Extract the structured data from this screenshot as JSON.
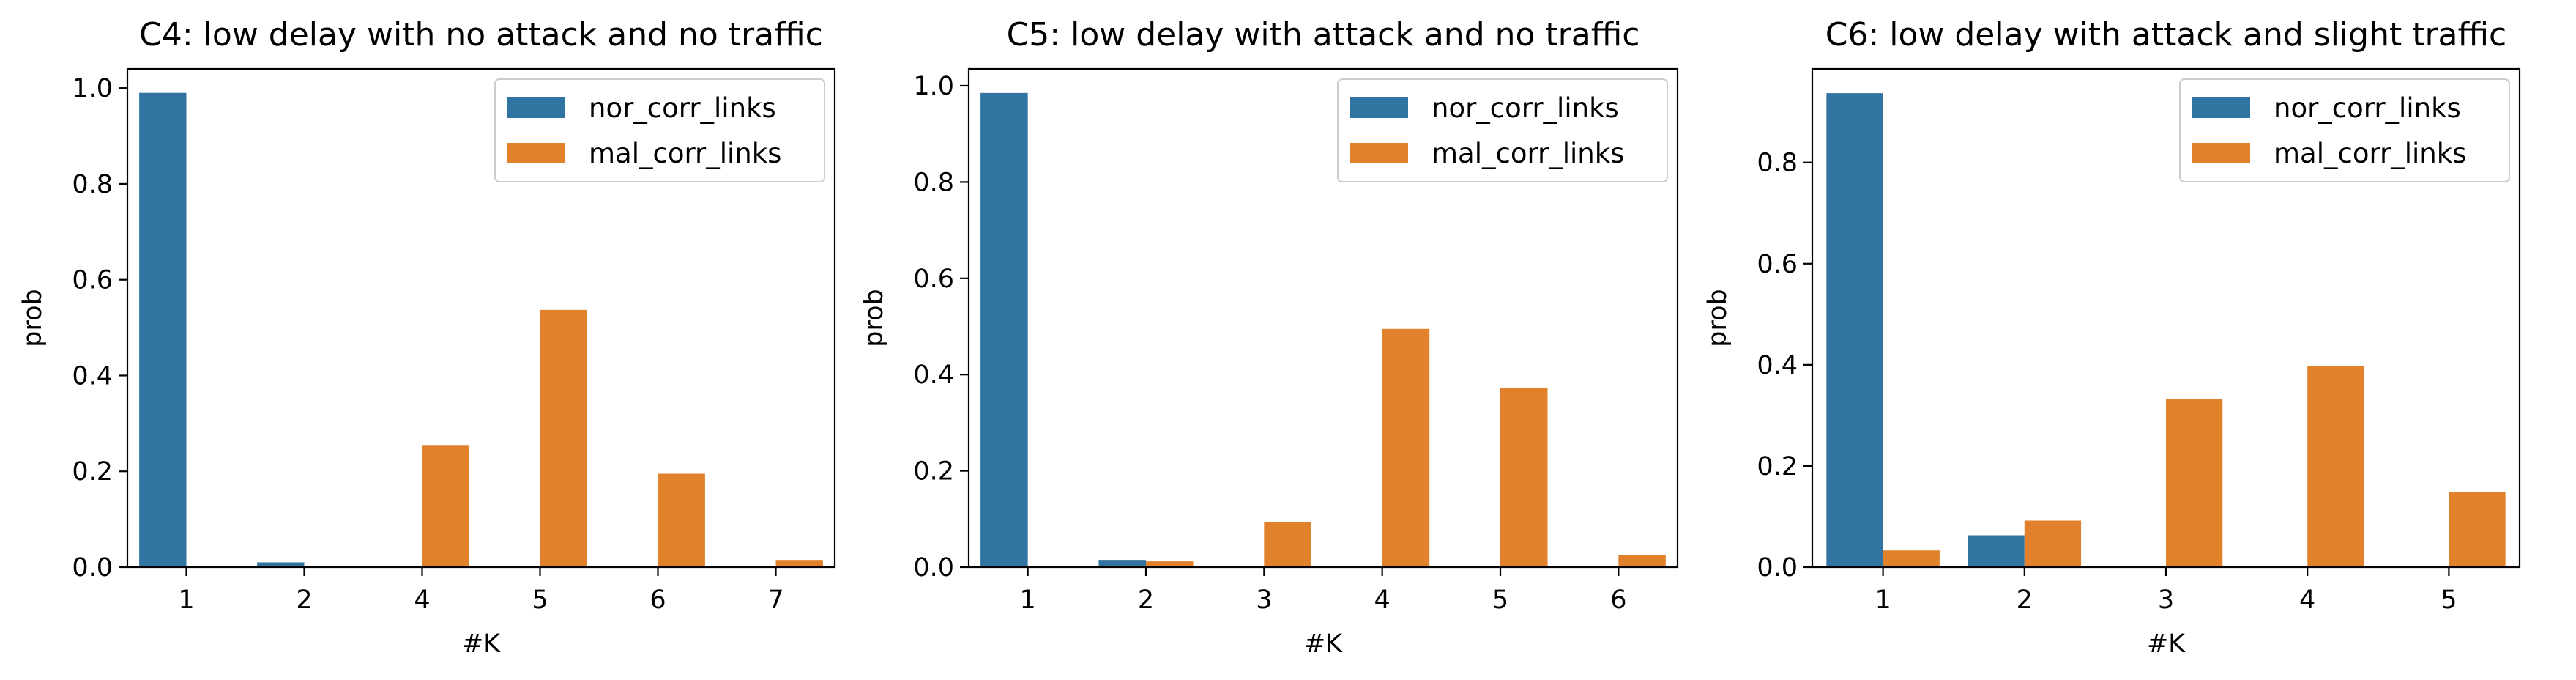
{
  "colors": {
    "nor": "#3274a1",
    "mal": "#e1812c"
  },
  "chart_data": [
    {
      "type": "bar",
      "title": "C4: low delay with no attack and no traffic",
      "xlabel": "#K",
      "ylabel": "prob",
      "categories": [
        "1",
        "2",
        "4",
        "5",
        "6",
        "7"
      ],
      "yticks": [
        0.0,
        0.2,
        0.4,
        0.6,
        0.8,
        1.0
      ],
      "ylim": [
        0,
        1.04
      ],
      "legend": "upper-right",
      "series": [
        {
          "name": "nor_corr_links",
          "values": [
            0.99,
            0.01,
            0,
            0,
            0,
            0
          ]
        },
        {
          "name": "mal_corr_links",
          "values": [
            0,
            0,
            0.255,
            0.537,
            0.195,
            0.015
          ]
        }
      ]
    },
    {
      "type": "bar",
      "title": "C5: low delay with attack and no traffic",
      "xlabel": "#K",
      "ylabel": "prob",
      "categories": [
        "1",
        "2",
        "3",
        "4",
        "5",
        "6"
      ],
      "yticks": [
        0.0,
        0.2,
        0.4,
        0.6,
        0.8,
        1.0
      ],
      "ylim": [
        0,
        1.035
      ],
      "legend": "upper-right",
      "series": [
        {
          "name": "nor_corr_links",
          "values": [
            0.985,
            0.015,
            0,
            0,
            0,
            0
          ]
        },
        {
          "name": "mal_corr_links",
          "values": [
            0,
            0.012,
            0.093,
            0.495,
            0.373,
            0.025
          ]
        }
      ]
    },
    {
      "type": "bar",
      "title": "C6: low delay with attack and slight traffic",
      "xlabel": "#K",
      "ylabel": "prob",
      "categories": [
        "1",
        "2",
        "3",
        "4",
        "5"
      ],
      "yticks": [
        0.0,
        0.2,
        0.4,
        0.6,
        0.8
      ],
      "ylim": [
        0,
        0.985
      ],
      "legend": "upper-right",
      "series": [
        {
          "name": "nor_corr_links",
          "values": [
            0.937,
            0.063,
            0,
            0,
            0
          ]
        },
        {
          "name": "mal_corr_links",
          "values": [
            0.033,
            0.092,
            0.332,
            0.398,
            0.148
          ]
        }
      ]
    }
  ]
}
